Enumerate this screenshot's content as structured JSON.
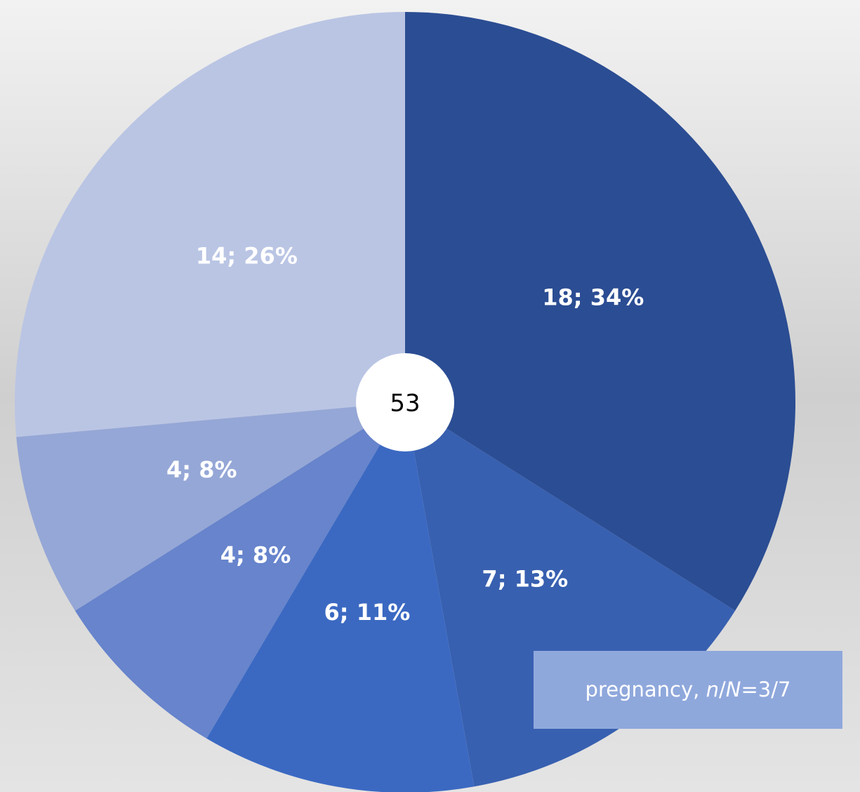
{
  "chart_data": {
    "type": "pie",
    "values": [
      18,
      7,
      6,
      4,
      4,
      14
    ],
    "value_labels": [
      "18; 34%",
      "7; 13%",
      "6; 11%",
      "4; 8%",
      "4; 8%",
      "14; 26%"
    ],
    "colors": [
      "#2b4d93",
      "#3860b0",
      "#3b69c2",
      "#6784cc",
      "#95a7d6",
      "#bac5e4"
    ],
    "total": 53,
    "annotation": [
      "pregnancy, ",
      "n",
      "/",
      "N",
      "=3/7"
    ]
  }
}
